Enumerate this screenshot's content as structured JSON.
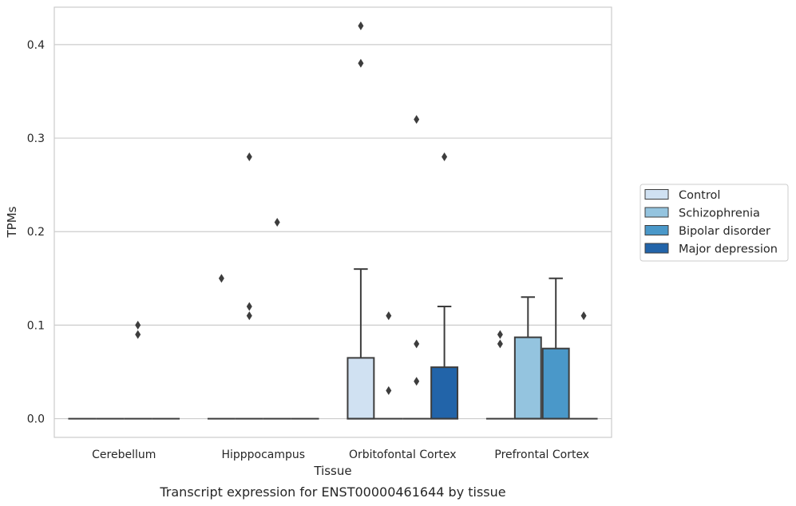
{
  "chart_data": {
    "type": "box",
    "xlabel": "Tissue",
    "ylabel": "TPMs",
    "caption": "Transcript expression for ENST00000461644 by tissue",
    "categories": [
      "Cerebellum",
      "Hipppocampus",
      "Orbitofontal Cortex",
      "Prefrontal Cortex"
    ],
    "ylim": [
      -0.02,
      0.44
    ],
    "yticks": [
      0.0,
      0.1,
      0.2,
      0.3,
      0.4
    ],
    "ytick_labels": [
      "0.0",
      "0.1",
      "0.2",
      "0.3",
      "0.4"
    ],
    "grid": "horizontal",
    "legend": {
      "position": "right",
      "entries": [
        "Control",
        "Schizophrenia",
        "Bipolar disorder",
        "Major depression"
      ]
    },
    "colors": [
      "#d0e1f2",
      "#94c4df",
      "#4a98c9",
      "#2264a9"
    ],
    "edge_color": "#3d3d3d",
    "series": [
      {
        "name": "Control",
        "boxes": [
          {
            "q1": 0,
            "median": 0,
            "q3": 0,
            "whislo": 0,
            "whishi": 0,
            "fliers": []
          },
          {
            "q1": 0,
            "median": 0,
            "q3": 0,
            "whislo": 0,
            "whishi": 0,
            "fliers": [
              0.15
            ]
          },
          {
            "q1": 0,
            "median": 0,
            "q3": 0.065,
            "whislo": 0,
            "whishi": 0.16,
            "fliers": [
              0.38,
              0.42
            ]
          },
          {
            "q1": 0,
            "median": 0,
            "q3": 0,
            "whislo": 0,
            "whishi": 0,
            "fliers": [
              0.08,
              0.09
            ]
          }
        ]
      },
      {
        "name": "Schizophrenia",
        "boxes": [
          {
            "q1": 0,
            "median": 0,
            "q3": 0,
            "whislo": 0,
            "whishi": 0,
            "fliers": []
          },
          {
            "q1": 0,
            "median": 0,
            "q3": 0,
            "whislo": 0,
            "whishi": 0,
            "fliers": [
              0.11,
              0.12,
              0.28
            ]
          },
          {
            "q1": 0,
            "median": 0,
            "q3": 0,
            "whislo": 0,
            "whishi": 0,
            "fliers": [
              0.03,
              0.11
            ]
          },
          {
            "q1": 0,
            "median": 0,
            "q3": 0.087,
            "whislo": 0,
            "whishi": 0.13,
            "fliers": []
          }
        ]
      },
      {
        "name": "Bipolar disorder",
        "boxes": [
          {
            "q1": 0,
            "median": 0,
            "q3": 0,
            "whislo": 0,
            "whishi": 0,
            "fliers": [
              0.09,
              0.1
            ]
          },
          {
            "q1": 0,
            "median": 0,
            "q3": 0,
            "whislo": 0,
            "whishi": 0,
            "fliers": [
              0.21
            ]
          },
          {
            "q1": 0,
            "median": 0,
            "q3": 0,
            "whislo": 0,
            "whishi": 0,
            "fliers": [
              0.04,
              0.08,
              0.32
            ]
          },
          {
            "q1": 0,
            "median": 0,
            "q3": 0.075,
            "whislo": 0,
            "whishi": 0.15,
            "fliers": []
          }
        ]
      },
      {
        "name": "Major depression",
        "boxes": [
          {
            "q1": 0,
            "median": 0,
            "q3": 0,
            "whislo": 0,
            "whishi": 0,
            "fliers": []
          },
          {
            "q1": 0,
            "median": 0,
            "q3": 0,
            "whislo": 0,
            "whishi": 0,
            "fliers": []
          },
          {
            "q1": 0,
            "median": 0,
            "q3": 0.055,
            "whislo": 0,
            "whishi": 0.12,
            "fliers": [
              0.28
            ]
          },
          {
            "q1": 0,
            "median": 0,
            "q3": 0,
            "whislo": 0,
            "whishi": 0,
            "fliers": [
              0.11
            ]
          }
        ]
      }
    ]
  }
}
